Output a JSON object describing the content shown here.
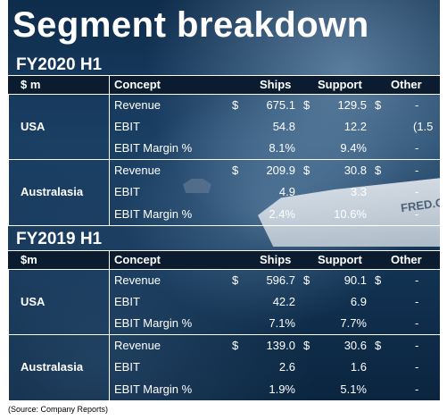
{
  "title": "Segment breakdown",
  "source": "(Source: Company Reports)",
  "ship_text": "FRED.O",
  "tables": [
    {
      "heading": "FY2020 H1",
      "columns": [
        "$ m",
        "Concept",
        "Ships",
        "Support",
        "Other"
      ],
      "segments": [
        {
          "name": "USA",
          "rows": [
            {
              "concept": "Revenue",
              "ships_cur": "$",
              "ships": "675.1",
              "support_cur": "$",
              "support": "129.5",
              "other_cur": "$",
              "other": "-"
            },
            {
              "concept": "EBIT",
              "ships_cur": "",
              "ships": "54.8",
              "support_cur": "",
              "support": "12.2",
              "other_cur": "",
              "other": "(1.5"
            },
            {
              "concept": "EBIT Margin %",
              "ships_cur": "",
              "ships": "8.1%",
              "support_cur": "",
              "support": "9.4%",
              "other_cur": "",
              "other": "-"
            }
          ]
        },
        {
          "name": "Australasia",
          "rows": [
            {
              "concept": "Revenue",
              "ships_cur": "$",
              "ships": "209.9",
              "support_cur": "$",
              "support": "30.8",
              "other_cur": "$",
              "other": "-"
            },
            {
              "concept": "EBIT",
              "ships_cur": "",
              "ships": "4.9",
              "support_cur": "",
              "support": "3.3",
              "other_cur": "",
              "other": "-"
            },
            {
              "concept": "EBIT Margin %",
              "ships_cur": "",
              "ships": "2.4%",
              "support_cur": "",
              "support": "10.6%",
              "other_cur": "",
              "other": "-"
            }
          ]
        }
      ]
    },
    {
      "heading": "FY2019 H1",
      "columns": [
        "$m",
        "Concept",
        "Ships",
        "Support",
        "Other"
      ],
      "segments": [
        {
          "name": "USA",
          "rows": [
            {
              "concept": "Revenue",
              "ships_cur": "$",
              "ships": "596.7",
              "support_cur": "$",
              "support": "90.1",
              "other_cur": "$",
              "other": "-"
            },
            {
              "concept": "EBIT",
              "ships_cur": "",
              "ships": "42.2",
              "support_cur": "",
              "support": "6.9",
              "other_cur": "",
              "other": "-"
            },
            {
              "concept": "EBIT Margin %",
              "ships_cur": "",
              "ships": "7.1%",
              "support_cur": "",
              "support": "7.7%",
              "other_cur": "",
              "other": "-"
            }
          ]
        },
        {
          "name": "Australasia",
          "rows": [
            {
              "concept": "Revenue",
              "ships_cur": "$",
              "ships": "139.0",
              "support_cur": "$",
              "support": "30.6",
              "other_cur": "$",
              "other": "-"
            },
            {
              "concept": "EBIT",
              "ships_cur": "",
              "ships": "2.6",
              "support_cur": "",
              "support": "1.6",
              "other_cur": "",
              "other": "-"
            },
            {
              "concept": "EBIT Margin %",
              "ships_cur": "",
              "ships": "1.9%",
              "support_cur": "",
              "support": "5.1%",
              "other_cur": "",
              "other": "-"
            }
          ]
        }
      ]
    }
  ]
}
